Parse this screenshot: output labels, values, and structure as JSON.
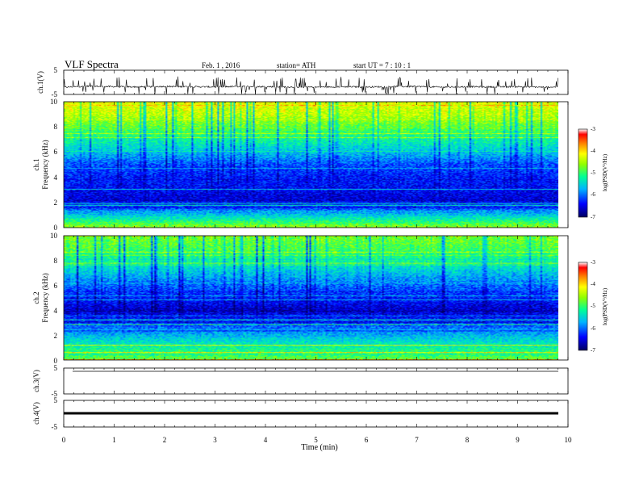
{
  "header": {
    "title": "VLF  Spectra",
    "date": "Feb. 1  , 2016",
    "station": "station= ATH",
    "start": "start  UT  =    7  : 10 : 1"
  },
  "axes": {
    "xlabel": "Time  (min)",
    "xticks": [
      "0",
      "1",
      "2",
      "3",
      "4",
      "5",
      "6",
      "7",
      "8",
      "9",
      "10"
    ],
    "ch1_wave_label": "ch.1(V)",
    "ch1_spec_label": "ch.1",
    "ch2_spec_label": "ch.2",
    "freq_label": "Frequency  (kHz)",
    "ch3_wave_label": "ch.3(V)",
    "ch4_wave_label": "ch.4(V)",
    "wave_ticks": [
      "5",
      "-5"
    ],
    "freq_ticks": [
      "10",
      "8",
      "6",
      "4",
      "2",
      "0"
    ]
  },
  "colorbar": {
    "label": "log(PSD(V²/Hz)",
    "ticks": [
      "-3",
      "-4",
      "-5",
      "-6",
      "-7"
    ],
    "range": [
      -7,
      -3
    ]
  },
  "colors": {
    "low": "#00003a",
    "mid": "#00c8ff",
    "high": "#ffff00",
    "max": "#ff0000"
  },
  "chart_data": [
    {
      "type": "line",
      "name": "ch.1 waveform",
      "xlabel": "Time (min)",
      "ylabel": "ch.1(V)",
      "xlim": [
        0,
        10
      ],
      "ylim": [
        -5,
        5
      ],
      "x": [
        0.0,
        0.5,
        1.0,
        1.5,
        2.0,
        2.5,
        3.0,
        3.5,
        4.0,
        4.5,
        5.0,
        5.5,
        6.0,
        6.5,
        7.0,
        7.5,
        8.0,
        8.5,
        9.0,
        9.5,
        9.8
      ],
      "y": [
        -2.0,
        -1.6,
        -1.8,
        -1.9,
        -1.7,
        -1.8,
        -1.9,
        -1.7,
        -1.8,
        -1.9,
        -2.0,
        -1.8,
        -1.9,
        -1.8,
        -1.7,
        -2.0,
        -1.8,
        -1.9,
        -1.8,
        -2.0,
        -1.9
      ],
      "note_spikes": "frequent impulsive spikes up to about +1 and down to about -4"
    },
    {
      "type": "heatmap",
      "name": "ch.1 spectrogram",
      "xlabel": "Time (min)",
      "ylabel": "Frequency (kHz)",
      "xlim": [
        0,
        9.8
      ],
      "ylim": [
        0,
        10
      ],
      "z_range": [
        -7,
        -3
      ],
      "freq_profile_kHz": [
        0,
        1,
        2,
        3,
        4,
        5,
        6,
        7,
        8,
        9,
        10
      ],
      "log_psd_profile": [
        -4.6,
        -5.6,
        -6.6,
        -6.4,
        -6.3,
        -6.1,
        -5.6,
        -5.2,
        -4.8,
        -4.4,
        -4.2
      ]
    },
    {
      "type": "heatmap",
      "name": "ch.2 spectrogram",
      "xlabel": "Time (min)",
      "ylabel": "Frequency (kHz)",
      "xlim": [
        0,
        9.8
      ],
      "ylim": [
        0,
        10
      ],
      "z_range": [
        -7,
        -3
      ],
      "freq_profile_kHz": [
        0,
        1,
        2,
        3,
        4,
        5,
        6,
        7,
        8,
        9,
        10
      ],
      "log_psd_profile": [
        -4.8,
        -5.2,
        -5.7,
        -6.2,
        -6.6,
        -6.3,
        -6.0,
        -5.6,
        -5.2,
        -4.9,
        -4.7
      ]
    },
    {
      "type": "line",
      "name": "ch.3 waveform",
      "xlabel": "Time (min)",
      "ylabel": "ch.3(V)",
      "xlim": [
        0,
        10
      ],
      "ylim": [
        -5,
        5
      ],
      "x": [
        0,
        9.8
      ],
      "y": [
        5.0,
        5.0
      ]
    },
    {
      "type": "line",
      "name": "ch.4 waveform",
      "xlabel": "Time (min)",
      "ylabel": "ch.4(V)",
      "xlim": [
        0,
        10
      ],
      "ylim": [
        -5,
        5
      ],
      "x": [
        0,
        9.8
      ],
      "y": [
        0.0,
        0.0
      ]
    }
  ]
}
